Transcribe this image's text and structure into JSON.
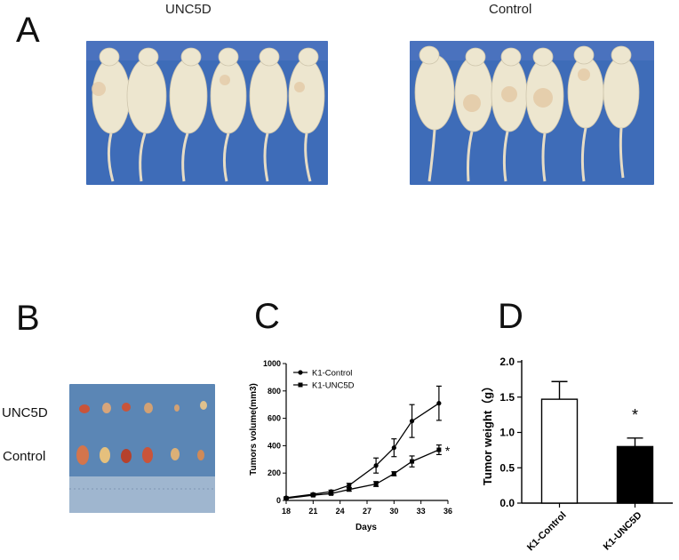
{
  "panels": {
    "a": {
      "letter": "A",
      "left_title": "UNC5D",
      "right_title": "Control"
    },
    "b": {
      "letter": "B",
      "row_labels": [
        "UNC5D",
        "Control"
      ]
    },
    "c": {
      "letter": "C"
    },
    "d": {
      "letter": "D"
    }
  },
  "colors": {
    "photo_background": "#3e6cb8",
    "mouse_skin": "#ede6cf",
    "tray_background": "#5b86b5",
    "tumor": "#c9543a"
  },
  "chart_data": [
    {
      "type": "line",
      "title": "",
      "xlabel": "Days",
      "ylabel": "Tumors volume(mm3)",
      "xlim": [
        18,
        36
      ],
      "ylim": [
        0,
        1000
      ],
      "x_ticks": [
        18,
        21,
        24,
        27,
        30,
        33,
        36
      ],
      "y_ticks": [
        0,
        200,
        400,
        600,
        800,
        1000
      ],
      "grid": false,
      "legend_position": "top-left",
      "x": [
        18,
        21,
        23,
        25,
        28,
        30,
        32,
        35
      ],
      "series": [
        {
          "name": "K1-Control",
          "marker": "circle",
          "values": [
            20,
            45,
            65,
            110,
            255,
            385,
            580,
            710
          ],
          "errors": [
            5,
            8,
            10,
            15,
            55,
            65,
            120,
            125
          ]
        },
        {
          "name": "K1-UNC5D",
          "marker": "square",
          "values": [
            15,
            38,
            50,
            80,
            120,
            195,
            285,
            370
          ],
          "errors": [
            4,
            6,
            8,
            12,
            18,
            15,
            40,
            35
          ]
        }
      ],
      "annotations": [
        {
          "text": "*",
          "series": "K1-UNC5D",
          "x": 35
        }
      ]
    },
    {
      "type": "bar",
      "title": "",
      "xlabel": "",
      "ylabel": "Tumor weight（g）",
      "ylim": [
        0,
        2.0
      ],
      "y_ticks": [
        "0.0",
        "0.5",
        "1.0",
        "1.5",
        "2.0"
      ],
      "categories": [
        "K1-Control",
        "K1-UNC5D"
      ],
      "values": [
        1.47,
        0.8
      ],
      "errors": [
        0.25,
        0.12
      ],
      "bar_fills": [
        "#ffffff",
        "#000000"
      ],
      "annotations": [
        {
          "text": "*",
          "category": "K1-UNC5D"
        }
      ]
    }
  ]
}
